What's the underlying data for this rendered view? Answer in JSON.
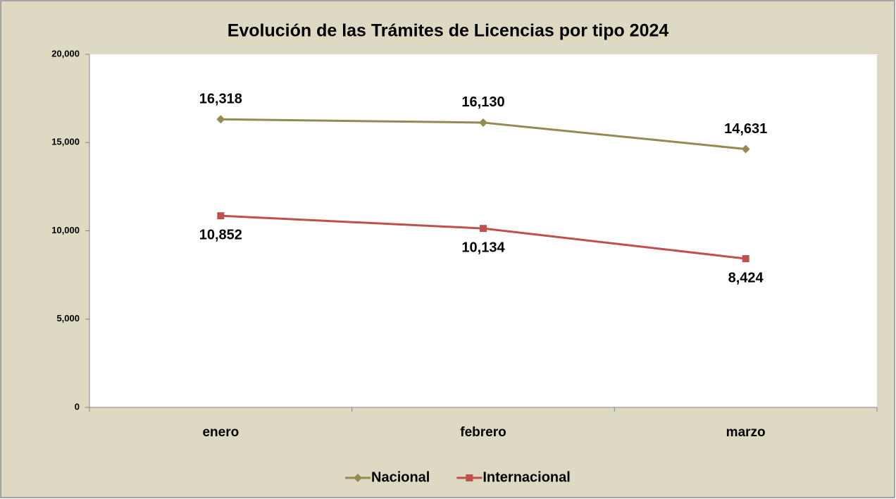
{
  "chart_data": {
    "type": "line",
    "title": "Evolución de las Trámites de Licencias  por tipo 2024",
    "categories": [
      "enero",
      "febrero",
      "marzo"
    ],
    "series": [
      {
        "name": "Nacional",
        "color": "#948a54",
        "marker": "diamond",
        "values": [
          16318,
          16130,
          14631
        ],
        "value_labels": [
          "16,318",
          "16,130",
          "14,631"
        ],
        "label_position": "above"
      },
      {
        "name": "Internacional",
        "color": "#c0504d",
        "marker": "square",
        "values": [
          10852,
          10134,
          8424
        ],
        "value_labels": [
          "10,852",
          "10,134",
          "8,424"
        ],
        "label_position": "below"
      }
    ],
    "ylim": [
      0,
      20000
    ],
    "yticks": [
      0,
      {
        "value": 5000,
        "label": "5,000"
      },
      {
        "value": 10000,
        "label": "10,000"
      },
      {
        "value": 15000,
        "label": "15,000"
      },
      {
        "value": 20000,
        "label": "20,000"
      }
    ],
    "grid": false,
    "legend": "bottom"
  }
}
